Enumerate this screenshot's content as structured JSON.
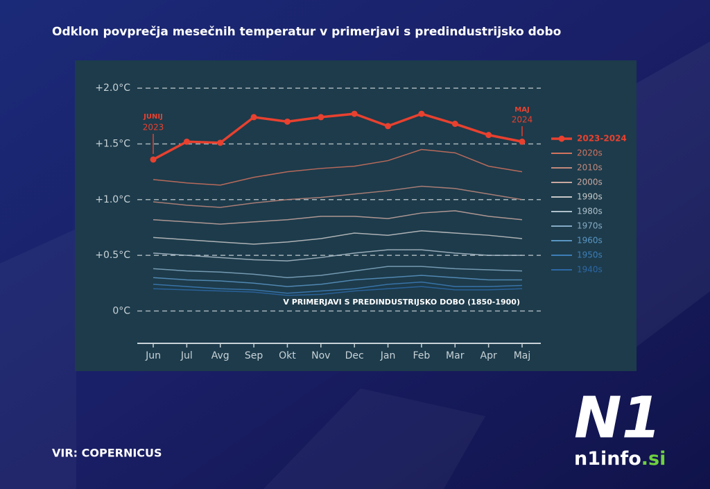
{
  "chart_data": {
    "type": "line",
    "title": "Odklon povprečja mesečnih temperatur v primerjavi s predindustrijsko dobo",
    "source": "VIR: COPERNICUS",
    "categories": [
      "Jun",
      "Jul",
      "Avg",
      "Sep",
      "Okt",
      "Nov",
      "Dec",
      "Jan",
      "Feb",
      "Mar",
      "Apr",
      "Maj"
    ],
    "series": [
      {
        "name": "2023-2024",
        "color": "#e8412f",
        "values": [
          1.36,
          1.52,
          1.51,
          1.74,
          1.7,
          1.74,
          1.77,
          1.66,
          1.77,
          1.68,
          1.58,
          1.52
        ]
      },
      {
        "name": "2020s",
        "color": "#d3735e",
        "values": [
          1.18,
          1.15,
          1.13,
          1.2,
          1.25,
          1.28,
          1.3,
          1.35,
          1.45,
          1.42,
          1.3,
          1.25
        ]
      },
      {
        "name": "2010s",
        "color": "#c28a7c",
        "values": [
          0.98,
          0.95,
          0.93,
          0.97,
          1.0,
          1.02,
          1.05,
          1.08,
          1.12,
          1.1,
          1.05,
          1.0
        ]
      },
      {
        "name": "2000s",
        "color": "#c9a8a0",
        "values": [
          0.82,
          0.8,
          0.78,
          0.8,
          0.82,
          0.85,
          0.85,
          0.83,
          0.88,
          0.9,
          0.85,
          0.82
        ]
      },
      {
        "name": "1990s",
        "color": "#c8c8c8",
        "values": [
          0.66,
          0.64,
          0.62,
          0.6,
          0.62,
          0.65,
          0.7,
          0.68,
          0.72,
          0.7,
          0.68,
          0.65
        ]
      },
      {
        "name": "1980s",
        "color": "#afc0cb",
        "values": [
          0.52,
          0.5,
          0.48,
          0.46,
          0.45,
          0.48,
          0.52,
          0.55,
          0.55,
          0.52,
          0.5,
          0.5
        ]
      },
      {
        "name": "1970s",
        "color": "#85abc4",
        "values": [
          0.38,
          0.36,
          0.35,
          0.33,
          0.3,
          0.32,
          0.36,
          0.4,
          0.4,
          0.38,
          0.37,
          0.36
        ]
      },
      {
        "name": "1960s",
        "color": "#5a96c4",
        "values": [
          0.3,
          0.28,
          0.27,
          0.25,
          0.22,
          0.24,
          0.28,
          0.3,
          0.32,
          0.3,
          0.28,
          0.28
        ]
      },
      {
        "name": "1950s",
        "color": "#3d7eb8",
        "values": [
          0.24,
          0.22,
          0.2,
          0.19,
          0.16,
          0.18,
          0.2,
          0.24,
          0.26,
          0.22,
          0.22,
          0.23
        ]
      },
      {
        "name": "1940s",
        "color": "#2d68a6",
        "values": [
          0.2,
          0.19,
          0.18,
          0.17,
          0.14,
          0.15,
          0.18,
          0.2,
          0.22,
          0.19,
          0.19,
          0.2
        ]
      }
    ],
    "ylim": [
      -0.29,
      2.25
    ],
    "yticks": [
      {
        "value": 0,
        "label": "0°C"
      },
      {
        "value": 0.5,
        "label": "+0.5°C"
      },
      {
        "value": 1,
        "label": "+1.0°C"
      },
      {
        "value": 1.5,
        "label": "+1.5°C"
      },
      {
        "value": 2,
        "label": "+2.0°C"
      }
    ],
    "grid": true,
    "annotations": [
      "JUNIJ",
      "2023",
      "MAJ",
      "2024",
      "V PRIMERJAVI S PREDINDUSTRIJSKO DOBO (1850-1900)"
    ]
  },
  "logo": "N1",
  "site": "n1info",
  "site_suffix": ".si"
}
